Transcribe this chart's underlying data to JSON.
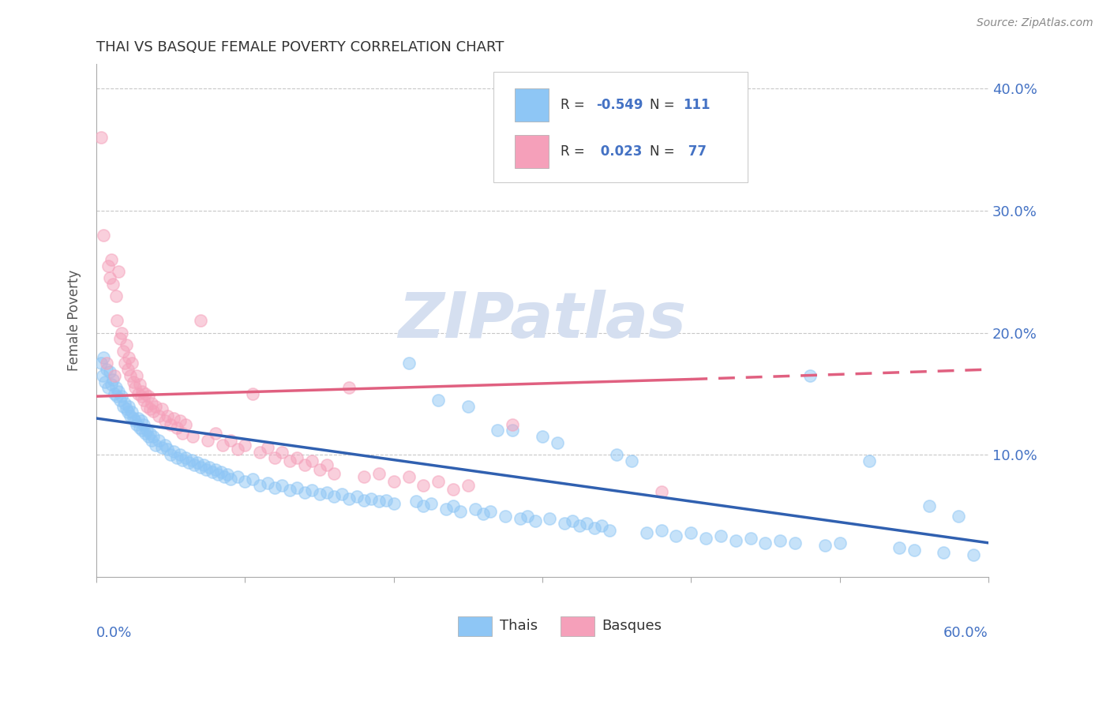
{
  "title": "THAI VS BASQUE FEMALE POVERTY CORRELATION CHART",
  "source_text": "Source: ZipAtlas.com",
  "ylabel": "Female Poverty",
  "xmin": 0.0,
  "xmax": 0.6,
  "ymin": 0.0,
  "ymax": 0.42,
  "ytick_vals": [
    0.1,
    0.2,
    0.3,
    0.4
  ],
  "ytick_labels": [
    "10.0%",
    "20.0%",
    "30.0%",
    "40.0%"
  ],
  "thai_color": "#8EC6F5",
  "basque_color": "#F5A0BA",
  "thai_line_color": "#3060B0",
  "basque_line_color": "#E06080",
  "legend_text_color": "#4472C4",
  "background_color": "#FFFFFF",
  "grid_color": "#C8C8C8",
  "watermark": "ZIPatlas",
  "watermark_color": "#D5DFF0",
  "thai_scatter": [
    [
      0.003,
      0.175
    ],
    [
      0.004,
      0.165
    ],
    [
      0.005,
      0.18
    ],
    [
      0.006,
      0.16
    ],
    [
      0.007,
      0.17
    ],
    [
      0.008,
      0.155
    ],
    [
      0.009,
      0.168
    ],
    [
      0.01,
      0.158
    ],
    [
      0.011,
      0.162
    ],
    [
      0.012,
      0.15
    ],
    [
      0.013,
      0.155
    ],
    [
      0.014,
      0.148
    ],
    [
      0.015,
      0.152
    ],
    [
      0.016,
      0.145
    ],
    [
      0.017,
      0.148
    ],
    [
      0.018,
      0.14
    ],
    [
      0.019,
      0.142
    ],
    [
      0.02,
      0.138
    ],
    [
      0.021,
      0.135
    ],
    [
      0.022,
      0.14
    ],
    [
      0.023,
      0.132
    ],
    [
      0.024,
      0.135
    ],
    [
      0.025,
      0.13
    ],
    [
      0.026,
      0.128
    ],
    [
      0.027,
      0.125
    ],
    [
      0.028,
      0.13
    ],
    [
      0.029,
      0.122
    ],
    [
      0.03,
      0.128
    ],
    [
      0.031,
      0.12
    ],
    [
      0.032,
      0.125
    ],
    [
      0.033,
      0.118
    ],
    [
      0.034,
      0.12
    ],
    [
      0.035,
      0.115
    ],
    [
      0.036,
      0.118
    ],
    [
      0.037,
      0.112
    ],
    [
      0.038,
      0.115
    ],
    [
      0.04,
      0.108
    ],
    [
      0.042,
      0.112
    ],
    [
      0.044,
      0.106
    ],
    [
      0.046,
      0.108
    ],
    [
      0.048,
      0.105
    ],
    [
      0.05,
      0.1
    ],
    [
      0.052,
      0.103
    ],
    [
      0.054,
      0.098
    ],
    [
      0.056,
      0.1
    ],
    [
      0.058,
      0.096
    ],
    [
      0.06,
      0.098
    ],
    [
      0.062,
      0.094
    ],
    [
      0.064,
      0.096
    ],
    [
      0.066,
      0.092
    ],
    [
      0.068,
      0.094
    ],
    [
      0.07,
      0.09
    ],
    [
      0.072,
      0.092
    ],
    [
      0.074,
      0.088
    ],
    [
      0.076,
      0.09
    ],
    [
      0.078,
      0.086
    ],
    [
      0.08,
      0.088
    ],
    [
      0.082,
      0.084
    ],
    [
      0.084,
      0.086
    ],
    [
      0.086,
      0.082
    ],
    [
      0.088,
      0.084
    ],
    [
      0.09,
      0.08
    ],
    [
      0.095,
      0.082
    ],
    [
      0.1,
      0.078
    ],
    [
      0.105,
      0.08
    ],
    [
      0.11,
      0.075
    ],
    [
      0.115,
      0.077
    ],
    [
      0.12,
      0.073
    ],
    [
      0.125,
      0.075
    ],
    [
      0.13,
      0.071
    ],
    [
      0.135,
      0.073
    ],
    [
      0.14,
      0.069
    ],
    [
      0.145,
      0.071
    ],
    [
      0.15,
      0.068
    ],
    [
      0.155,
      0.069
    ],
    [
      0.16,
      0.066
    ],
    [
      0.165,
      0.068
    ],
    [
      0.17,
      0.064
    ],
    [
      0.175,
      0.066
    ],
    [
      0.18,
      0.063
    ],
    [
      0.185,
      0.064
    ],
    [
      0.19,
      0.062
    ],
    [
      0.195,
      0.063
    ],
    [
      0.2,
      0.06
    ],
    [
      0.21,
      0.175
    ],
    [
      0.215,
      0.062
    ],
    [
      0.22,
      0.058
    ],
    [
      0.225,
      0.06
    ],
    [
      0.23,
      0.145
    ],
    [
      0.235,
      0.056
    ],
    [
      0.24,
      0.058
    ],
    [
      0.245,
      0.054
    ],
    [
      0.25,
      0.14
    ],
    [
      0.255,
      0.056
    ],
    [
      0.26,
      0.052
    ],
    [
      0.265,
      0.054
    ],
    [
      0.27,
      0.12
    ],
    [
      0.275,
      0.05
    ],
    [
      0.28,
      0.12
    ],
    [
      0.285,
      0.048
    ],
    [
      0.29,
      0.05
    ],
    [
      0.295,
      0.046
    ],
    [
      0.3,
      0.115
    ],
    [
      0.305,
      0.048
    ],
    [
      0.31,
      0.11
    ],
    [
      0.315,
      0.044
    ],
    [
      0.32,
      0.046
    ],
    [
      0.325,
      0.042
    ],
    [
      0.33,
      0.044
    ],
    [
      0.335,
      0.04
    ],
    [
      0.34,
      0.042
    ],
    [
      0.345,
      0.038
    ],
    [
      0.35,
      0.1
    ],
    [
      0.36,
      0.095
    ],
    [
      0.37,
      0.036
    ],
    [
      0.38,
      0.038
    ],
    [
      0.39,
      0.034
    ],
    [
      0.4,
      0.036
    ],
    [
      0.41,
      0.032
    ],
    [
      0.42,
      0.034
    ],
    [
      0.43,
      0.03
    ],
    [
      0.44,
      0.032
    ],
    [
      0.45,
      0.028
    ],
    [
      0.46,
      0.03
    ],
    [
      0.47,
      0.028
    ],
    [
      0.48,
      0.165
    ],
    [
      0.49,
      0.026
    ],
    [
      0.5,
      0.028
    ],
    [
      0.52,
      0.095
    ],
    [
      0.54,
      0.024
    ],
    [
      0.55,
      0.022
    ],
    [
      0.56,
      0.058
    ],
    [
      0.57,
      0.02
    ],
    [
      0.58,
      0.05
    ],
    [
      0.59,
      0.018
    ]
  ],
  "basque_scatter": [
    [
      0.003,
      0.36
    ],
    [
      0.005,
      0.28
    ],
    [
      0.007,
      0.175
    ],
    [
      0.008,
      0.255
    ],
    [
      0.009,
      0.245
    ],
    [
      0.01,
      0.26
    ],
    [
      0.011,
      0.24
    ],
    [
      0.012,
      0.165
    ],
    [
      0.013,
      0.23
    ],
    [
      0.014,
      0.21
    ],
    [
      0.015,
      0.25
    ],
    [
      0.016,
      0.195
    ],
    [
      0.017,
      0.2
    ],
    [
      0.018,
      0.185
    ],
    [
      0.019,
      0.175
    ],
    [
      0.02,
      0.19
    ],
    [
      0.021,
      0.17
    ],
    [
      0.022,
      0.18
    ],
    [
      0.023,
      0.165
    ],
    [
      0.024,
      0.175
    ],
    [
      0.025,
      0.16
    ],
    [
      0.026,
      0.155
    ],
    [
      0.027,
      0.165
    ],
    [
      0.028,
      0.15
    ],
    [
      0.029,
      0.158
    ],
    [
      0.03,
      0.148
    ],
    [
      0.031,
      0.152
    ],
    [
      0.032,
      0.145
    ],
    [
      0.033,
      0.15
    ],
    [
      0.034,
      0.14
    ],
    [
      0.035,
      0.148
    ],
    [
      0.036,
      0.138
    ],
    [
      0.037,
      0.142
    ],
    [
      0.038,
      0.136
    ],
    [
      0.04,
      0.14
    ],
    [
      0.042,
      0.132
    ],
    [
      0.044,
      0.138
    ],
    [
      0.046,
      0.128
    ],
    [
      0.048,
      0.132
    ],
    [
      0.05,
      0.125
    ],
    [
      0.052,
      0.13
    ],
    [
      0.054,
      0.122
    ],
    [
      0.056,
      0.128
    ],
    [
      0.058,
      0.118
    ],
    [
      0.06,
      0.125
    ],
    [
      0.065,
      0.115
    ],
    [
      0.07,
      0.21
    ],
    [
      0.075,
      0.112
    ],
    [
      0.08,
      0.118
    ],
    [
      0.085,
      0.108
    ],
    [
      0.09,
      0.112
    ],
    [
      0.095,
      0.105
    ],
    [
      0.1,
      0.108
    ],
    [
      0.105,
      0.15
    ],
    [
      0.11,
      0.102
    ],
    [
      0.115,
      0.106
    ],
    [
      0.12,
      0.098
    ],
    [
      0.125,
      0.102
    ],
    [
      0.13,
      0.095
    ],
    [
      0.135,
      0.098
    ],
    [
      0.14,
      0.092
    ],
    [
      0.145,
      0.095
    ],
    [
      0.15,
      0.088
    ],
    [
      0.155,
      0.092
    ],
    [
      0.16,
      0.085
    ],
    [
      0.17,
      0.155
    ],
    [
      0.18,
      0.082
    ],
    [
      0.19,
      0.085
    ],
    [
      0.2,
      0.078
    ],
    [
      0.21,
      0.082
    ],
    [
      0.22,
      0.075
    ],
    [
      0.23,
      0.078
    ],
    [
      0.24,
      0.072
    ],
    [
      0.25,
      0.075
    ],
    [
      0.28,
      0.125
    ],
    [
      0.38,
      0.07
    ]
  ]
}
